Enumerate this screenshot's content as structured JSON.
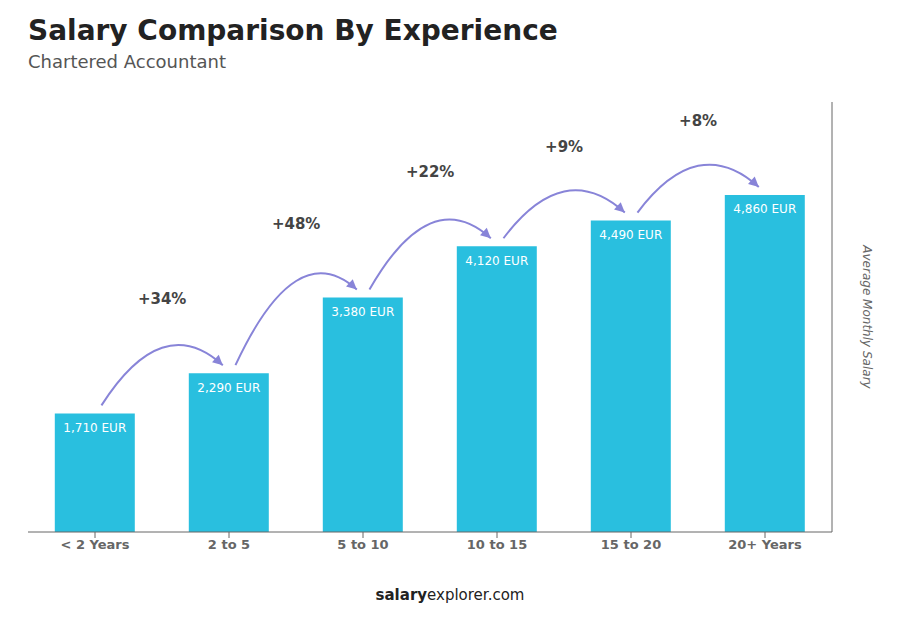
{
  "chart_data": {
    "type": "bar",
    "title": "Salary Comparison By Experience",
    "subtitle": "Chartered Accountant",
    "categories": [
      "< 2 Years",
      "2 to 5",
      "5 to 10",
      "10 to 15",
      "15 to 20",
      "20+ Years"
    ],
    "values": [
      1710,
      2290,
      3380,
      4120,
      4490,
      4860
    ],
    "value_labels": [
      "1,710 EUR",
      "2,290 EUR",
      "3,380 EUR",
      "4,120 EUR",
      "4,490 EUR",
      "4,860 EUR"
    ],
    "data_labels": true,
    "color": "#29bfdf",
    "ylim": [
      0,
      6200
    ],
    "tick_labels": "x",
    "ylabel": "Average Monthly Salary",
    "annotations": [
      "+34%",
      "+48%",
      "+22%",
      "+9%",
      "+8%"
    ],
    "caption": [
      "salary",
      "explorer.com"
    ]
  }
}
